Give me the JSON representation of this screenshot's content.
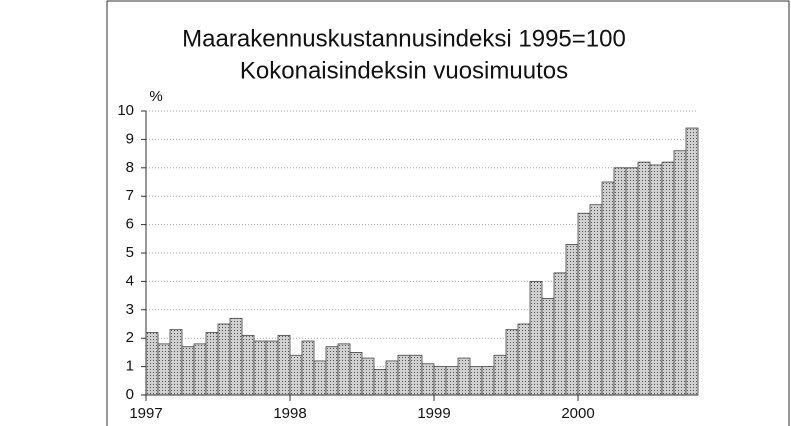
{
  "chart_data": {
    "type": "bar",
    "title": "Maarakennuskustannusindeksi 1995=100",
    "subtitle": "Kokonaisindeksin vuosimuutos",
    "y_label": "%",
    "categories": [
      "1997",
      null,
      null,
      null,
      null,
      null,
      null,
      null,
      null,
      null,
      null,
      null,
      "1998",
      null,
      null,
      null,
      null,
      null,
      null,
      null,
      null,
      null,
      null,
      null,
      "1999",
      null,
      null,
      null,
      null,
      null,
      null,
      null,
      null,
      null,
      null,
      null,
      "2000",
      null,
      null,
      null,
      null,
      null,
      null,
      null,
      null,
      null
    ],
    "values": [
      2.2,
      1.8,
      2.3,
      1.7,
      1.8,
      2.2,
      2.5,
      2.7,
      2.1,
      1.9,
      1.9,
      2.1,
      1.4,
      1.9,
      1.2,
      1.7,
      1.8,
      1.5,
      1.3,
      0.9,
      1.2,
      1.4,
      1.4,
      1.1,
      1.0,
      1.0,
      1.3,
      1.0,
      1.0,
      1.4,
      2.3,
      2.5,
      4.0,
      3.4,
      4.3,
      5.3,
      6.4,
      6.7,
      7.5,
      8.0,
      8.0,
      8.2,
      8.1,
      8.2,
      8.6,
      9.4
    ],
    "color": "#c4c4c4",
    "ylim": [
      0,
      10
    ],
    "yticks": [
      0,
      1,
      2,
      3,
      4,
      5,
      6,
      7,
      8,
      9,
      10
    ],
    "grid": true
  }
}
